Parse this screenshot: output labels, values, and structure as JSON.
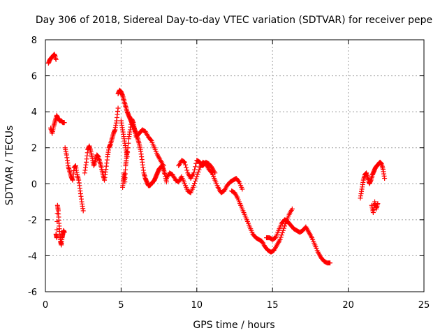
{
  "chart_data": {
    "type": "scatter",
    "title": "Day 306 of 2018, Sidereal Day-to-day VTEC variation (SDTVAR) for receiver pepe",
    "xlabel": "GPS time / hours",
    "ylabel": "SDTVAR / TECUs",
    "xlim": [
      0,
      25
    ],
    "ylim": [
      -6,
      8
    ],
    "xticks": [
      0,
      5,
      10,
      15,
      20,
      25
    ],
    "yticks": [
      -6,
      -4,
      -2,
      0,
      2,
      4,
      6,
      8
    ],
    "grid": true,
    "marker": "plus",
    "series": [
      {
        "name": "SDTVAR",
        "color": "#ff0000",
        "segments": [
          {
            "x": [
              0.2,
              0.3,
              0.4,
              0.5,
              0.6,
              0.7
            ],
            "y": [
              6.7,
              6.9,
              7.0,
              7.1,
              7.2,
              6.9
            ]
          },
          {
            "x": [
              0.35,
              0.45,
              0.55,
              0.65,
              0.75,
              0.85,
              0.95,
              1.05,
              1.15,
              1.25
            ],
            "y": [
              3.1,
              2.8,
              3.2,
              3.5,
              3.8,
              3.6,
              3.5,
              3.5,
              3.4,
              3.4
            ]
          },
          {
            "x": [
              0.7,
              0.75,
              0.8,
              0.85,
              0.9,
              0.95,
              1.0,
              1.05,
              1.1,
              1.15,
              1.2,
              1.25
            ],
            "y": [
              -2.8,
              -3.0,
              -1.2,
              -1.5,
              -2.2,
              -2.8,
              -3.2,
              -3.4,
              -3.0,
              -2.8,
              -2.6,
              -2.7
            ]
          },
          {
            "x": [
              1.3,
              1.4,
              1.5,
              1.6,
              1.7,
              1.8,
              1.9,
              2.0,
              2.1,
              2.2,
              2.3,
              2.4,
              2.5
            ],
            "y": [
              2.0,
              1.6,
              1.0,
              0.7,
              0.4,
              0.2,
              0.9,
              1.0,
              0.5,
              0.2,
              -0.4,
              -1.0,
              -1.5
            ]
          },
          {
            "x": [
              2.6,
              2.7,
              2.8,
              2.9,
              3.0,
              3.1,
              3.2,
              3.3,
              3.4,
              3.5,
              3.6,
              3.7,
              3.8,
              3.9,
              4.0,
              4.1,
              4.2,
              4.3,
              4.4,
              4.5,
              4.6,
              4.7,
              4.8
            ],
            "y": [
              0.6,
              1.2,
              1.9,
              2.1,
              1.8,
              1.4,
              1.0,
              1.3,
              1.6,
              1.5,
              1.2,
              0.9,
              0.5,
              0.2,
              0.8,
              1.5,
              2.0,
              2.2,
              2.5,
              2.8,
              3.0,
              3.5,
              4.2
            ]
          },
          {
            "x": [
              4.8,
              4.9,
              5.0,
              5.1,
              5.2,
              5.3,
              5.4,
              5.5,
              5.6,
              5.7,
              5.8,
              5.9,
              6.0,
              6.1,
              6.2,
              6.3,
              6.4,
              6.5,
              6.6,
              6.7,
              6.8,
              6.9,
              7.0,
              7.1,
              7.2,
              7.3,
              7.4,
              7.5,
              7.6,
              7.7,
              7.8,
              7.9,
              8.0
            ],
            "y": [
              5.0,
              5.2,
              5.1,
              4.9,
              4.6,
              4.3,
              4.0,
              3.8,
              3.6,
              3.4,
              3.2,
              3.0,
              2.8,
              2.5,
              2.2,
              1.8,
              1.2,
              0.6,
              0.3,
              0.1,
              -0.1,
              -0.1,
              0.0,
              0.1,
              0.2,
              0.4,
              0.6,
              0.8,
              0.9,
              1.0,
              0.8,
              0.5,
              0.1
            ]
          },
          {
            "x": [
              5.0,
              5.1,
              5.2,
              5.3,
              5.4,
              5.5,
              5.6,
              5.7,
              5.8,
              5.9,
              6.0,
              6.2,
              6.4,
              6.6,
              6.8,
              7.0,
              7.2,
              7.4,
              7.6,
              7.8
            ],
            "y": [
              3.5,
              3.0,
              2.5,
              2.0,
              1.5,
              2.5,
              3.0,
              3.6,
              3.4,
              3.0,
              2.6,
              2.8,
              3.0,
              2.9,
              2.6,
              2.4,
              2.0,
              1.6,
              1.3,
              1.0
            ]
          },
          {
            "x": [
              5.1,
              5.15,
              5.2,
              5.25,
              5.3,
              5.35,
              5.4
            ],
            "y": [
              -0.2,
              0.2,
              0.6,
              0.1,
              1.0,
              1.4,
              1.8
            ]
          },
          {
            "x": [
              8.0,
              8.2,
              8.4,
              8.6,
              8.8,
              9.0,
              9.2,
              9.4,
              9.6,
              9.8,
              10.0,
              10.2,
              10.4,
              10.6,
              10.8,
              11.0,
              11.2,
              11.4,
              11.6,
              11.8,
              12.0,
              12.2,
              12.4,
              12.6,
              12.8,
              13.0
            ],
            "y": [
              0.3,
              0.6,
              0.5,
              0.2,
              0.1,
              0.4,
              0.0,
              -0.4,
              -0.5,
              -0.1,
              0.4,
              0.9,
              1.2,
              1.1,
              0.8,
              0.6,
              0.2,
              -0.2,
              -0.5,
              -0.4,
              -0.1,
              0.1,
              0.2,
              0.3,
              0.1,
              -0.3
            ]
          },
          {
            "x": [
              8.8,
              9.0,
              9.2,
              9.4,
              9.6,
              9.8,
              10.0,
              10.2,
              10.4,
              10.6,
              10.8,
              11.0,
              11.2
            ],
            "y": [
              1.0,
              1.3,
              1.2,
              0.6,
              0.3,
              0.6,
              1.3,
              1.2,
              1.0,
              1.2,
              1.1,
              0.9,
              0.6
            ]
          },
          {
            "x": [
              12.3,
              12.5,
              12.7,
              12.9,
              13.1,
              13.3,
              13.5,
              13.7,
              13.9,
              14.1,
              14.3,
              14.5,
              14.7,
              14.9,
              15.1,
              15.3,
              15.5,
              15.7,
              15.9,
              16.1,
              16.3
            ],
            "y": [
              -0.4,
              -0.5,
              -0.8,
              -1.2,
              -1.6,
              -2.0,
              -2.4,
              -2.8,
              -3.0,
              -3.1,
              -3.2,
              -3.5,
              -3.7,
              -3.8,
              -3.7,
              -3.4,
              -3.1,
              -2.6,
              -2.1,
              -1.7,
              -1.4
            ]
          },
          {
            "x": [
              14.6,
              14.8,
              15.0,
              15.2,
              15.4,
              15.6,
              15.8,
              16.0,
              16.2,
              16.4,
              16.6,
              16.8,
              17.0,
              17.2,
              17.4,
              17.6,
              17.8,
              18.0,
              18.2,
              18.4,
              18.6,
              18.8
            ],
            "y": [
              -3.0,
              -3.0,
              -3.1,
              -3.0,
              -2.6,
              -2.2,
              -2.0,
              -2.1,
              -2.3,
              -2.5,
              -2.6,
              -2.7,
              -2.6,
              -2.4,
              -2.7,
              -3.0,
              -3.4,
              -3.8,
              -4.1,
              -4.3,
              -4.4,
              -4.4
            ]
          },
          {
            "x": [
              20.8,
              20.9,
              21.0,
              21.1,
              21.2,
              21.3,
              21.4,
              21.5,
              21.6,
              21.7,
              21.8,
              21.9,
              22.0,
              22.1,
              22.2,
              22.3,
              22.4
            ],
            "y": [
              -0.8,
              -0.3,
              0.2,
              0.5,
              0.6,
              0.3,
              0.0,
              0.2,
              0.5,
              0.7,
              0.9,
              1.0,
              1.1,
              1.2,
              1.1,
              0.8,
              0.3
            ]
          },
          {
            "x": [
              21.55,
              21.65,
              21.75,
              21.85,
              21.95
            ],
            "y": [
              -1.2,
              -1.6,
              -1.0,
              -1.4,
              -1.1
            ]
          }
        ]
      }
    ]
  }
}
